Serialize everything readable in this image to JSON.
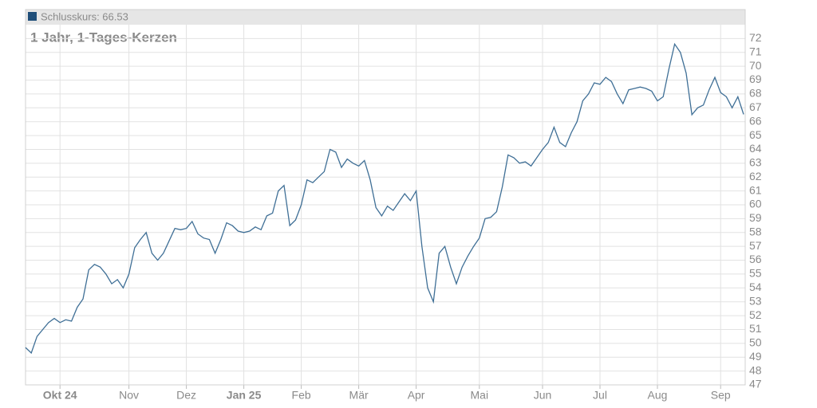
{
  "chart_data": {
    "type": "line",
    "subtitle": "1 Jahr, 1-Tages-Kerzen",
    "categories": [
      null,
      null,
      null,
      null,
      null,
      null,
      "Okt 24",
      null,
      null,
      null,
      null,
      null,
      null,
      null,
      null,
      null,
      null,
      null,
      "Nov",
      null,
      null,
      null,
      null,
      null,
      null,
      null,
      null,
      null,
      "Dez",
      null,
      null,
      null,
      null,
      null,
      null,
      null,
      null,
      null,
      "Jan 25",
      null,
      null,
      null,
      null,
      null,
      null,
      null,
      null,
      null,
      "Feb",
      null,
      null,
      null,
      null,
      null,
      null,
      null,
      null,
      null,
      "Mär",
      null,
      null,
      null,
      null,
      null,
      null,
      null,
      null,
      null,
      "Apr",
      null,
      null,
      null,
      null,
      null,
      null,
      null,
      null,
      null,
      null,
      "Mai",
      null,
      null,
      null,
      null,
      null,
      null,
      null,
      null,
      null,
      null,
      "Jun",
      null,
      null,
      null,
      null,
      null,
      null,
      null,
      null,
      null,
      "Jul",
      null,
      null,
      null,
      null,
      null,
      null,
      null,
      null,
      null,
      "Aug",
      null,
      null,
      null,
      null,
      null,
      null,
      null,
      null,
      null,
      null,
      "Sep",
      null,
      null,
      null,
      null
    ],
    "series": [
      {
        "name": "Schlusskurs: 66.53",
        "color": "#3f6f96",
        "values": [
          49.7,
          49.3,
          50.5,
          51.0,
          51.5,
          51.8,
          51.5,
          51.7,
          51.6,
          52.6,
          53.2,
          55.3,
          55.7,
          55.5,
          55.0,
          54.3,
          54.6,
          54.0,
          55.0,
          56.9,
          57.5,
          58.0,
          56.5,
          56.0,
          56.5,
          57.4,
          58.3,
          58.2,
          58.3,
          58.8,
          57.9,
          57.6,
          57.5,
          56.5,
          57.5,
          58.7,
          58.5,
          58.1,
          58.0,
          58.1,
          58.4,
          58.2,
          59.2,
          59.4,
          61.0,
          61.4,
          58.5,
          58.9,
          60.0,
          61.8,
          61.6,
          62.0,
          62.4,
          64.0,
          63.8,
          62.7,
          63.3,
          63.0,
          62.8,
          63.2,
          61.8,
          59.8,
          59.2,
          59.9,
          59.6,
          60.2,
          60.8,
          60.3,
          61.0,
          57.0,
          54.0,
          53.0,
          56.5,
          57.0,
          55.5,
          54.3,
          55.5,
          56.3,
          57.0,
          57.6,
          59.0,
          59.1,
          59.5,
          61.3,
          63.6,
          63.4,
          63.0,
          63.1,
          62.8,
          63.4,
          64.0,
          64.5,
          65.6,
          64.5,
          64.2,
          65.2,
          66.0,
          67.5,
          68.0,
          68.8,
          68.7,
          69.2,
          68.9,
          68.0,
          67.3,
          68.3,
          68.4,
          68.5,
          68.4,
          68.2,
          67.5,
          67.8,
          69.8,
          71.6,
          71.0,
          69.5,
          66.5,
          67.0,
          67.2,
          68.3,
          69.2,
          68.1,
          67.8,
          67.0,
          67.8,
          66.53
        ]
      }
    ],
    "ylim": [
      47,
      73
    ],
    "yticks": [
      47,
      48,
      49,
      50,
      51,
      52,
      53,
      54,
      55,
      56,
      57,
      58,
      59,
      60,
      61,
      62,
      63,
      64,
      65,
      66,
      67,
      68,
      69,
      70,
      71,
      72
    ],
    "grid": true
  }
}
